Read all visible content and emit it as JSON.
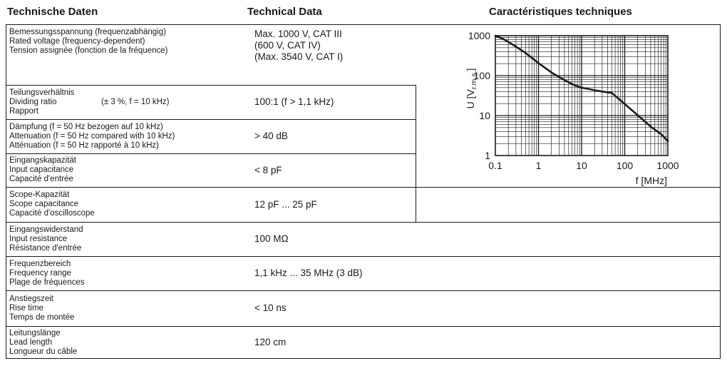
{
  "header": {
    "de": "Technische Daten",
    "en": "Technical Data",
    "fr": "Caractéristiques techniques"
  },
  "table": {
    "rows": [
      {
        "labels": [
          "Bemessungsspannung (frequenzabhängig)",
          "Rated voltage (frequency-dependent)",
          "Tension assignée (fonction de la fréquence)"
        ],
        "value_lines": [
          "Max. 1000 V, CAT III",
          "(600 V, CAT IV)",
          "(Max. 3540 V, CAT I)"
        ]
      },
      {
        "labels": [
          "Teilungsverhältnis",
          "Dividing ratio",
          "Rapport"
        ],
        "note": "(± 3 %, f = 10 kHz)",
        "value_lines": [
          "100:1 (f > 1,1 kHz)"
        ]
      },
      {
        "labels": [
          "Dämpfung (f = 50 Hz bezogen auf 10 kHz)",
          "Attenuation (f = 50 Hz compared with 10 kHz)",
          "Atténuation (f = 50 Hz rapporté à 10 kHz)"
        ],
        "value_lines": [
          "> 40 dB"
        ]
      },
      {
        "labels": [
          "Eingangskapazität",
          "Input capacitance",
          "Capacité d'entrée"
        ],
        "value_lines": [
          "< 8 pF"
        ]
      },
      {
        "labels": [
          "Scope-Kapazität",
          "Scope capacitance",
          "Capacité d'oscilloscope"
        ],
        "value_lines": [
          "12 pF ... 25 pF"
        ]
      },
      {
        "labels": [
          "Eingangswiderstand",
          "Input resistance",
          "Résistance d'entrée"
        ],
        "value_lines": [
          "100 MΩ"
        ]
      },
      {
        "labels": [
          "Frequenzbereich",
          "Frequency range",
          "Plage de fréquences"
        ],
        "value_lines": [
          "1,1 kHz ... 35 MHz (3 dB)"
        ]
      },
      {
        "labels": [
          "Anstiegszeit",
          "Rise time",
          "Temps de montée"
        ],
        "value_lines": [
          "< 10 ns"
        ]
      },
      {
        "labels": [
          "Leitungslänge",
          "Lead length",
          "Longueur du câble"
        ],
        "value_lines": [
          "120 cm"
        ]
      }
    ]
  },
  "chart_data": {
    "type": "line",
    "title": "",
    "xlabel": "f [MHz]",
    "ylabel_parts": {
      "prefix": "U [V",
      "sub": "r.m.s.",
      "suffix": "]"
    },
    "x_scale": "log",
    "y_scale": "log",
    "xlim": [
      0.1,
      1000
    ],
    "ylim": [
      1,
      1000
    ],
    "x_ticks": [
      0.1,
      1,
      10,
      100,
      1000
    ],
    "x_tick_labels": [
      "0.1",
      "1",
      "10",
      "100",
      "1000"
    ],
    "y_ticks": [
      1000,
      100,
      10,
      1
    ],
    "y_tick_labels": [
      "1000",
      "100",
      "10",
      "1"
    ],
    "grid": "log major+minor, black, both axes",
    "legend": "none",
    "line_color": "#1a1a1a",
    "series": [
      {
        "name": "max-permissible-voltage-vs-frequency",
        "points": [
          [
            0.1,
            1000
          ],
          [
            0.15,
            830
          ],
          [
            0.2,
            700
          ],
          [
            0.3,
            530
          ],
          [
            0.5,
            370
          ],
          [
            0.7,
            280
          ],
          [
            1,
            205
          ],
          [
            1.5,
            150
          ],
          [
            2,
            120
          ],
          [
            3,
            92
          ],
          [
            5,
            68
          ],
          [
            7,
            57
          ],
          [
            10,
            50
          ],
          [
            15,
            46
          ],
          [
            20,
            43
          ],
          [
            30,
            40
          ],
          [
            50,
            37
          ],
          [
            100,
            19.5
          ],
          [
            200,
            10.2
          ],
          [
            400,
            5.3
          ],
          [
            700,
            3.4
          ],
          [
            1000,
            2.3
          ]
        ]
      }
    ]
  }
}
